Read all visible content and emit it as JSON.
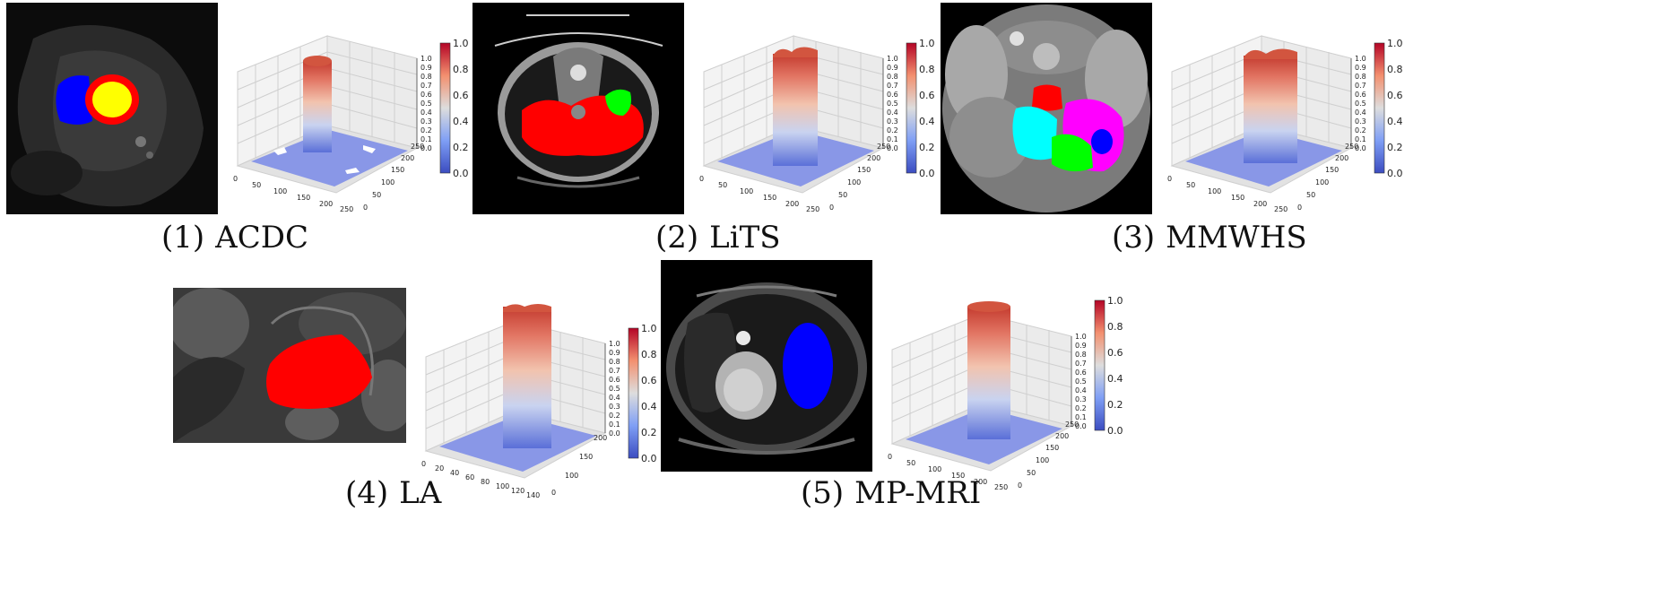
{
  "figure": {
    "panels": [
      {
        "id": "acdc",
        "number": "(1)",
        "name": "ACDC",
        "z_ticks": [
          "0.0",
          "0.1",
          "0.2",
          "0.3",
          "0.4",
          "0.5",
          "0.6",
          "0.7",
          "0.8",
          "0.9",
          "1.0"
        ],
        "x_ticks": [
          "0",
          "50",
          "100",
          "150",
          "200",
          "250"
        ],
        "y_ticks": [
          "0",
          "50",
          "100",
          "150",
          "200",
          "250"
        ],
        "colorbar_ticks": [
          "0.0",
          "0.2",
          "0.4",
          "0.6",
          "0.8",
          "1.0"
        ]
      },
      {
        "id": "lits",
        "number": "(2)",
        "name": "LiTS",
        "z_ticks": [
          "0.0",
          "0.1",
          "0.2",
          "0.3",
          "0.4",
          "0.5",
          "0.6",
          "0.7",
          "0.8",
          "0.9",
          "1.0"
        ],
        "x_ticks": [
          "0",
          "50",
          "100",
          "150",
          "200",
          "250"
        ],
        "y_ticks": [
          "0",
          "50",
          "100",
          "150",
          "200",
          "250"
        ],
        "colorbar_ticks": [
          "0.0",
          "0.2",
          "0.4",
          "0.6",
          "0.8",
          "1.0"
        ]
      },
      {
        "id": "mmwhs",
        "number": "(3)",
        "name": "MMWHS",
        "z_ticks": [
          "0.0",
          "0.1",
          "0.2",
          "0.3",
          "0.4",
          "0.5",
          "0.6",
          "0.7",
          "0.8",
          "0.9",
          "1.0"
        ],
        "x_ticks": [
          "0",
          "50",
          "100",
          "150",
          "200",
          "250"
        ],
        "y_ticks": [
          "0",
          "50",
          "100",
          "150",
          "200",
          "250"
        ],
        "colorbar_ticks": [
          "0.0",
          "0.2",
          "0.4",
          "0.6",
          "0.8",
          "1.0"
        ]
      },
      {
        "id": "la",
        "number": "(4)",
        "name": "LA",
        "z_ticks": [
          "0.0",
          "0.1",
          "0.2",
          "0.3",
          "0.4",
          "0.5",
          "0.6",
          "0.7",
          "0.8",
          "0.9",
          "1.0"
        ],
        "x_ticks": [
          "0",
          "20",
          "40",
          "60",
          "80",
          "100",
          "120",
          "140"
        ],
        "y_ticks": [
          "0",
          "100",
          "150",
          "200"
        ],
        "colorbar_ticks": [
          "0.0",
          "0.2",
          "0.4",
          "0.6",
          "0.8",
          "1.0"
        ]
      },
      {
        "id": "mpmri",
        "number": "(5)",
        "name": "MP-MRI",
        "z_ticks": [
          "0.0",
          "0.1",
          "0.2",
          "0.3",
          "0.4",
          "0.5",
          "0.6",
          "0.7",
          "0.8",
          "0.9",
          "1.0"
        ],
        "x_ticks": [
          "0",
          "50",
          "100",
          "150",
          "200",
          "250"
        ],
        "y_ticks": [
          "0",
          "50",
          "100",
          "150",
          "200",
          "250"
        ],
        "colorbar_ticks": [
          "0.0",
          "0.2",
          "0.4",
          "0.6",
          "0.8",
          "1.0"
        ]
      }
    ],
    "colors": {
      "label_red": "#ff0000",
      "label_blue": "#0000ff",
      "label_yellow": "#ffff00",
      "label_green": "#00ff00",
      "label_cyan": "#00ffff",
      "label_magenta": "#ff00ff",
      "cmap_low": "#3b4cc0",
      "cmap_mid": "#dddddd",
      "cmap_high": "#b40426"
    }
  }
}
